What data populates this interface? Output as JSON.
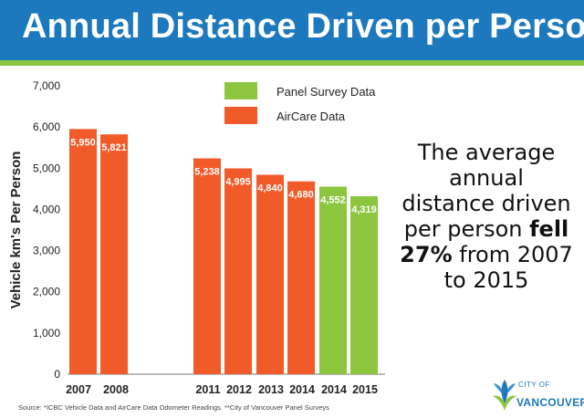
{
  "header": {
    "title": "Annual Distance Driven per Person"
  },
  "note": {
    "text_before": "The average annual distance driven per person ",
    "highlight": "fell 27%",
    "text_after": " from 2007 to 2015"
  },
  "source": "Source: *ICBC Vehicle Data and AirCare Data Odometer Readings.  **City of Vancouver Panel Surveys",
  "logo": {
    "line1": "CITY OF",
    "line2": "VANCOUVER"
  },
  "colors": {
    "header": "#1d79bd",
    "stripe": "#8cc63f",
    "aircare": "#f15a29",
    "panel": "#8cc63f"
  },
  "chart_data": {
    "type": "bar",
    "title": "",
    "xlabel": "",
    "ylabel": "Vehicle km's Per Person",
    "ylim": [
      0,
      7000
    ],
    "yticks": [
      0,
      1000,
      2000,
      3000,
      4000,
      5000,
      6000,
      7000
    ],
    "ytick_labels": [
      "0",
      "1,000",
      "2,000",
      "3,000",
      "4,000",
      "5,000",
      "6,000",
      "7,000"
    ],
    "grid": false,
    "legend_position": "top-right",
    "series": [
      {
        "name": "Panel Survey Data",
        "color": "#8cc63f"
      },
      {
        "name": "AirCare Data",
        "color": "#f15a29"
      }
    ],
    "bars": [
      {
        "category": "2007",
        "value": 5950,
        "label": "5,950",
        "series": "AirCare Data"
      },
      {
        "category": "2008",
        "value": 5821,
        "label": "5,821",
        "series": "AirCare Data"
      },
      {
        "category": "2011",
        "value": 5238,
        "label": "5,238",
        "series": "AirCare Data"
      },
      {
        "category": "2012",
        "value": 4995,
        "label": "4,995",
        "series": "AirCare Data"
      },
      {
        "category": "2013",
        "value": 4840,
        "label": "4,840",
        "series": "AirCare Data"
      },
      {
        "category": "2014",
        "value": 4680,
        "label": "4,680",
        "series": "AirCare Data"
      },
      {
        "category": "2014",
        "value": 4552,
        "label": "4,552",
        "series": "Panel Survey Data"
      },
      {
        "category": "2015",
        "value": 4319,
        "label": "4,319",
        "series": "Panel Survey Data"
      }
    ]
  }
}
